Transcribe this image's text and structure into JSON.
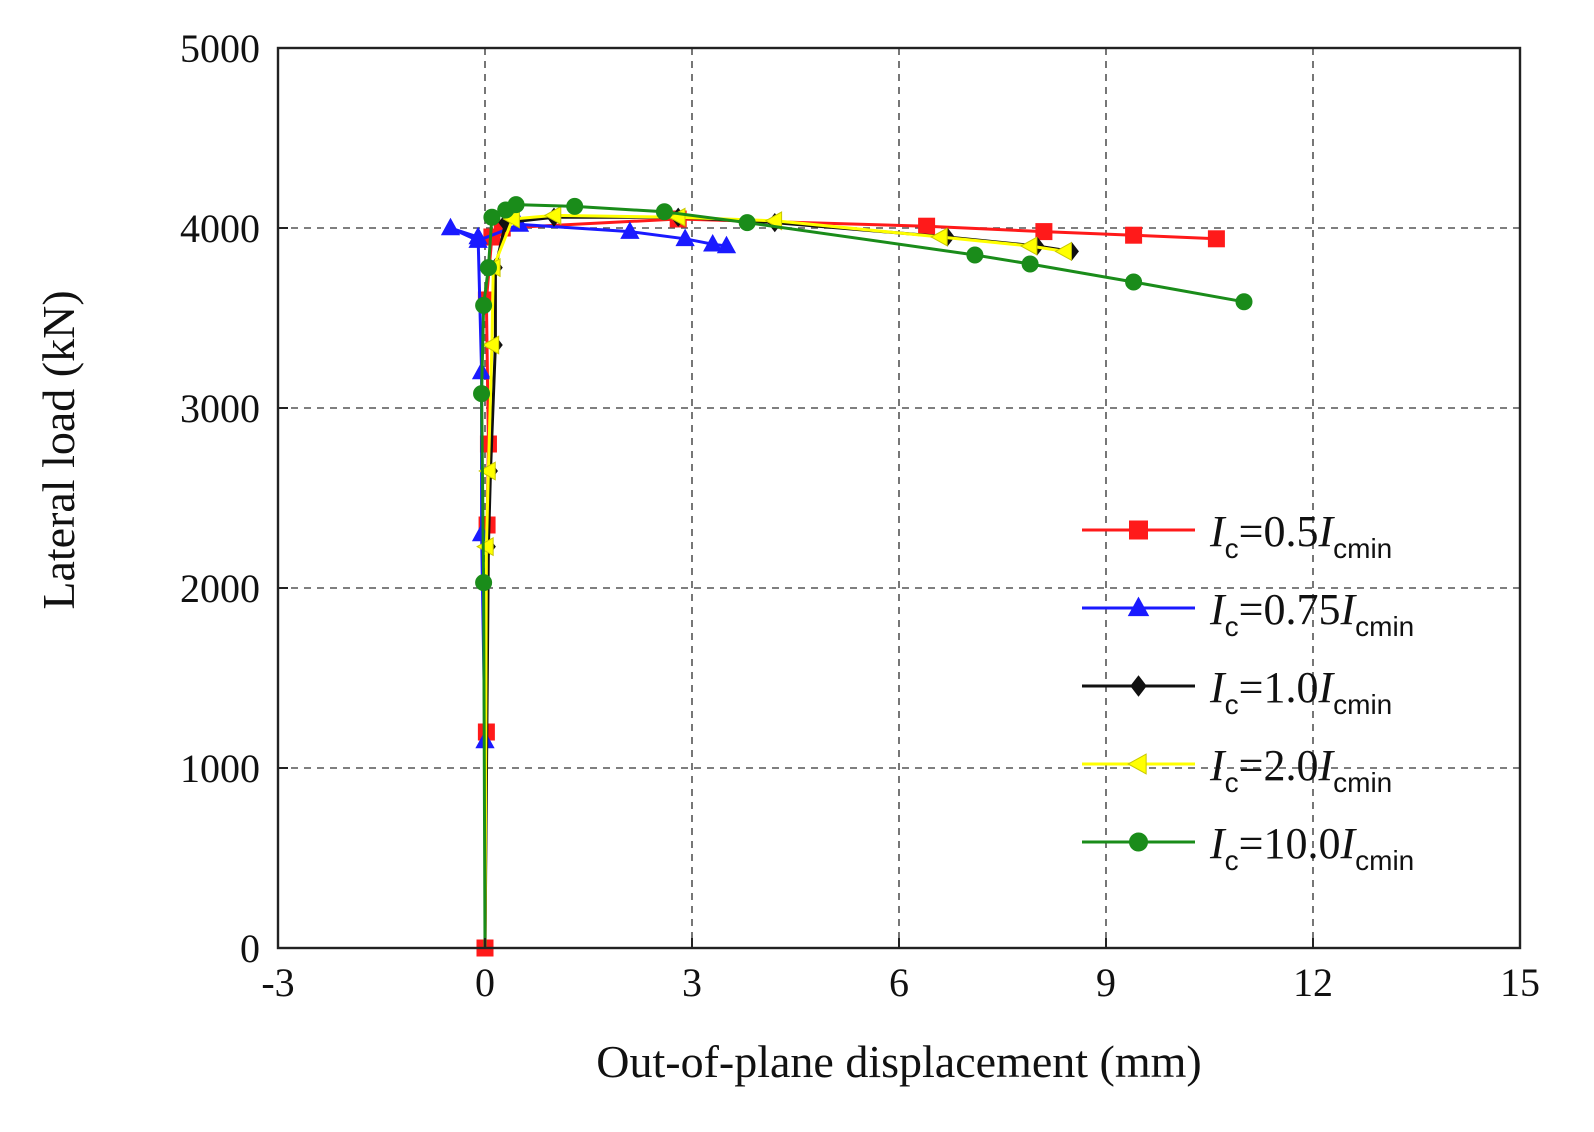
{
  "chart_data": {
    "type": "line",
    "title": "",
    "xlabel": "Out-of-plane displacement (mm)",
    "ylabel": "Lateral load (kN)",
    "xlim": [
      -3,
      15
    ],
    "ylim": [
      0,
      5000
    ],
    "xticks": [
      -3,
      0,
      3,
      6,
      9,
      12,
      15
    ],
    "yticks": [
      0,
      1000,
      2000,
      3000,
      4000,
      5000
    ],
    "xtick_labels": [
      "-3",
      "0",
      "3",
      "6",
      "9",
      "12",
      "15"
    ],
    "ytick_labels": [
      "0",
      "1000",
      "2000",
      "3000",
      "4000",
      "5000"
    ],
    "grid": true,
    "legend_position": "right",
    "series": [
      {
        "name": "Ic=0.5Icmin",
        "label_main": "I",
        "label_sub": "c",
        "label_mid": "=0.5",
        "label_main2": "I",
        "label_sub2": "cmin",
        "color": "#ff1a1a",
        "marker": "square",
        "points": [
          [
            0,
            0
          ],
          [
            0.02,
            1200
          ],
          [
            0.03,
            2350
          ],
          [
            0.05,
            2800
          ],
          [
            0.02,
            3600
          ],
          [
            0.1,
            3950
          ],
          [
            0.25,
            4000
          ],
          [
            2.8,
            4050
          ],
          [
            6.4,
            4010
          ],
          [
            8.1,
            3980
          ],
          [
            9.4,
            3960
          ],
          [
            10.6,
            3940
          ]
        ]
      },
      {
        "name": "Ic=0.75Icmin",
        "label_main": "I",
        "label_sub": "c",
        "label_mid": "=0.75",
        "label_main2": "I",
        "label_sub2": "cmin",
        "color": "#1a1aff",
        "marker": "triangle",
        "points": [
          [
            0,
            1150
          ],
          [
            -0.05,
            2300
          ],
          [
            -0.05,
            3200
          ],
          [
            -0.1,
            3950
          ],
          [
            -0.5,
            4000
          ],
          [
            -0.1,
            3930
          ],
          [
            0.5,
            4020
          ],
          [
            2.1,
            3980
          ],
          [
            2.9,
            3940
          ],
          [
            3.3,
            3910
          ],
          [
            3.5,
            3900
          ]
        ]
      },
      {
        "name": "Ic=1.0Icmin",
        "label_main": "I",
        "label_sub": "c",
        "label_mid": "=1.0",
        "label_main2": "I",
        "label_sub2": "cmin",
        "color": "#111111",
        "marker": "diamond",
        "points": [
          [
            0,
            0
          ],
          [
            0.05,
            2230
          ],
          [
            0.08,
            2650
          ],
          [
            0.15,
            3350
          ],
          [
            0.15,
            3780
          ],
          [
            0.3,
            4030
          ],
          [
            1.0,
            4060
          ],
          [
            2.8,
            4060
          ],
          [
            4.2,
            4030
          ],
          [
            6.7,
            3950
          ],
          [
            8.0,
            3900
          ],
          [
            8.5,
            3870
          ]
        ]
      },
      {
        "name": "Ic=2.0Icmin",
        "label_main": "I",
        "label_sub": "c",
        "label_mid": "=2.0",
        "label_main2": "I",
        "label_sub2": "cmin",
        "color": "#ffff00",
        "marker": "triangle-left",
        "points": [
          [
            0,
            0
          ],
          [
            0.02,
            2230
          ],
          [
            0.05,
            2650
          ],
          [
            0.1,
            3350
          ],
          [
            0.12,
            3780
          ],
          [
            0.4,
            4050
          ],
          [
            1.0,
            4070
          ],
          [
            2.8,
            4060
          ],
          [
            4.2,
            4040
          ],
          [
            6.6,
            3950
          ],
          [
            7.9,
            3900
          ],
          [
            8.4,
            3870
          ]
        ]
      },
      {
        "name": "Ic=10.0Icmin",
        "label_main": "I",
        "label_sub": "c",
        "label_mid": "=10.0",
        "label_main2": "I",
        "label_sub2": "cmin",
        "color": "#1a8c1a",
        "marker": "circle",
        "points": [
          [
            0,
            0
          ],
          [
            -0.02,
            2030
          ],
          [
            -0.05,
            3080
          ],
          [
            -0.02,
            3570
          ],
          [
            0.05,
            3780
          ],
          [
            0.1,
            4060
          ],
          [
            0.3,
            4100
          ],
          [
            0.45,
            4130
          ],
          [
            1.3,
            4120
          ],
          [
            2.6,
            4090
          ],
          [
            3.8,
            4030
          ],
          [
            7.1,
            3850
          ],
          [
            7.9,
            3800
          ],
          [
            9.4,
            3700
          ],
          [
            11.0,
            3590
          ]
        ]
      }
    ]
  }
}
